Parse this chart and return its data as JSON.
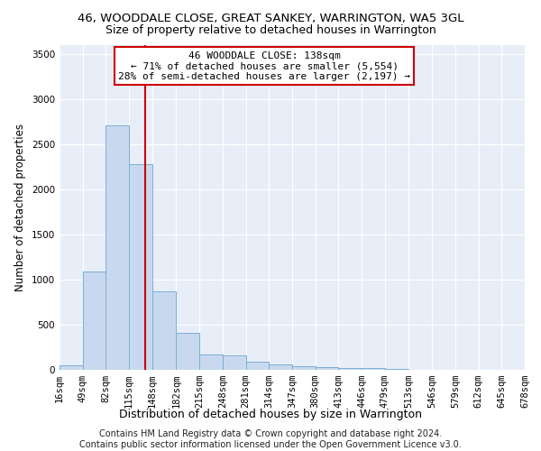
{
  "title": "46, WOODDALE CLOSE, GREAT SANKEY, WARRINGTON, WA5 3GL",
  "subtitle": "Size of property relative to detached houses in Warrington",
  "xlabel": "Distribution of detached houses by size in Warrington",
  "ylabel": "Number of detached properties",
  "bar_color": "#c8d9ef",
  "bar_edge_color": "#7bafd4",
  "background_color": "#e8eef8",
  "grid_color": "#ffffff",
  "annotation_text": "46 WOODDALE CLOSE: 138sqm\n← 71% of detached houses are smaller (5,554)\n28% of semi-detached houses are larger (2,197) →",
  "red_line_x": 138,
  "bin_edges": [
    16,
    49,
    82,
    115,
    148,
    182,
    215,
    248,
    281,
    314,
    347,
    380,
    413,
    446,
    479,
    513,
    546,
    579,
    612,
    645,
    678
  ],
  "bin_labels": [
    "16sqm",
    "49sqm",
    "82sqm",
    "115sqm",
    "148sqm",
    "182sqm",
    "215sqm",
    "248sqm",
    "281sqm",
    "314sqm",
    "347sqm",
    "380sqm",
    "413sqm",
    "446sqm",
    "479sqm",
    "513sqm",
    "546sqm",
    "579sqm",
    "612sqm",
    "645sqm",
    "678sqm"
  ],
  "bar_heights": [
    50,
    1095,
    2710,
    2280,
    870,
    415,
    170,
    165,
    90,
    60,
    45,
    30,
    25,
    20,
    10,
    5,
    5,
    3,
    2,
    1
  ],
  "ylim": [
    0,
    3600
  ],
  "yticks": [
    0,
    500,
    1000,
    1500,
    2000,
    2500,
    3000,
    3500
  ],
  "footer": "Contains HM Land Registry data © Crown copyright and database right 2024.\nContains public sector information licensed under the Open Government Licence v3.0.",
  "title_fontsize": 9.5,
  "subtitle_fontsize": 9,
  "xlabel_fontsize": 9,
  "ylabel_fontsize": 8.5,
  "tick_fontsize": 7.5,
  "footer_fontsize": 7,
  "annot_fontsize": 8
}
